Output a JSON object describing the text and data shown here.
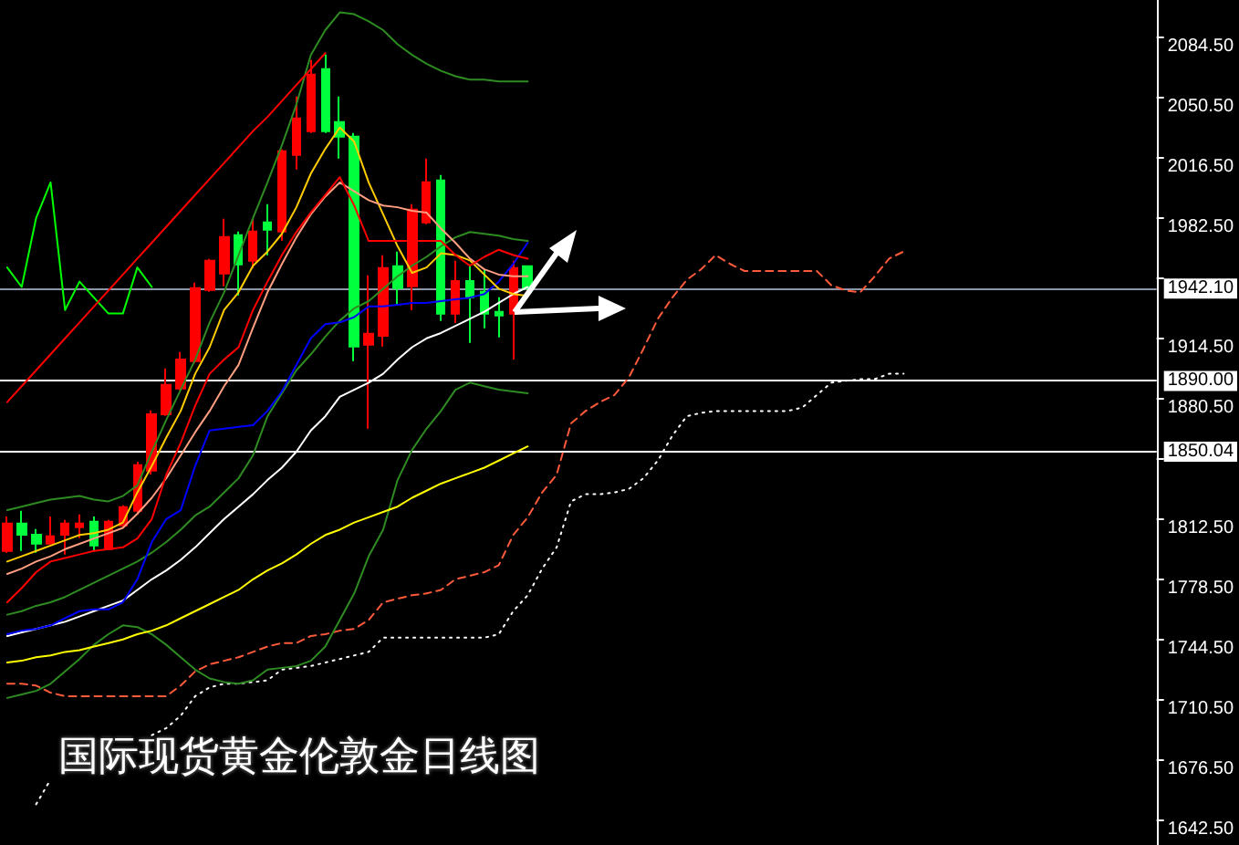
{
  "chart_data": {
    "type": "candlestick",
    "title": "国际现货黄金伦敦金日线图",
    "categories": [
      null,
      null,
      null,
      null,
      null,
      null,
      null,
      null,
      null,
      null,
      null,
      null,
      null,
      null,
      null,
      null,
      null,
      null,
      null,
      null,
      null,
      null,
      null,
      null,
      null,
      null,
      null,
      null,
      null,
      null,
      null,
      null,
      null,
      null,
      null,
      null,
      null,
      null,
      null,
      null,
      null,
      null,
      null,
      null,
      null,
      null,
      null,
      null,
      null,
      null,
      null,
      null,
      null,
      null,
      null,
      null,
      null,
      null,
      null,
      null,
      null,
      null,
      null,
      null,
      null,
      null,
      null,
      null,
      null,
      null,
      null,
      null,
      null,
      null,
      null,
      null,
      null,
      null,
      null,
      null
    ],
    "ohlc": [
      [
        1794,
        1813.5,
        1793,
        1809.4
      ],
      [
        1809.4,
        1816.6,
        1794,
        1803.2
      ],
      [
        1803.2,
        1806.3,
        1793,
        1798.1
      ],
      [
        1798.1,
        1813.5,
        1798.1,
        1802.3
      ],
      [
        1803.2,
        1811.5,
        1791.9,
        1809.4
      ],
      [
        1807.4,
        1814.6,
        1801.3,
        1809.4
      ],
      [
        1810.5,
        1813.5,
        1794,
        1797.1
      ],
      [
        1795,
        1811.5,
        1795,
        1810.5
      ],
      [
        1808.4,
        1819.7,
        1807.4,
        1818.7
      ],
      [
        1816.6,
        1844.4,
        1814.6,
        1842.4
      ],
      [
        1839.3,
        1873.3,
        1837.2,
        1871.2
      ],
      [
        1871.2,
        1897,
        1870.2,
        1887.7
      ],
      [
        1885.7,
        1906.3,
        1884.6,
        1902.1
      ],
      [
        1901.1,
        1945.4,
        1900.1,
        1942.3
      ],
      [
        1941.3,
        1958.8,
        1940.3,
        1957.8
      ],
      [
        1950.6,
        1981.5,
        1943.4,
        1971.2
      ],
      [
        1972.2,
        1974.3,
        1938.2,
        1955.7
      ],
      [
        1957.8,
        1981.5,
        1953.7,
        1974.3
      ],
      [
        1979.4,
        1989.7,
        1960.9,
        1975.3
      ],
      [
        1974.3,
        2020.6,
        1969.1,
        2019.6
      ],
      [
        2017.5,
        2050.5,
        2009.3,
        2038.1
      ],
      [
        2030.9,
        2071.1,
        2029.9,
        2062.9
      ],
      [
        2066,
        2074.2,
        2029.9,
        2030.9
      ],
      [
        2036.1,
        2050.5,
        2015.5,
        2027.8
      ],
      [
        2027.8,
        2029.9,
        1901.1,
        1909.4
      ],
      [
        1910.4,
        1949.5,
        1863,
        1916.6
      ],
      [
        1915.5,
        1960.9,
        1909.4,
        1953.7
      ],
      [
        1954.7,
        1962.9,
        1933.1,
        1942.3
      ],
      [
        1943.4,
        1989.7,
        1930,
        1986.6
      ],
      [
        1979.4,
        2015.5,
        1978.4,
        2002.1
      ],
      [
        2003.1,
        2006.2,
        1923.8,
        1927.9
      ],
      [
        1927.9,
        1957.8,
        1922.7,
        1946.4
      ],
      [
        1946.4,
        1955.7,
        1911.4,
        1937.2
      ],
      [
        1940.3,
        1952.6,
        1919.7,
        1927.9
      ],
      [
        1929,
        1937.2,
        1914.5,
        1926.9
      ],
      [
        1927.9,
        1957.8,
        1902.1,
        1953.7
      ],
      [
        1954.7,
        1954.7,
        1942.1,
        1942.1
      ],
      null,
      null,
      null,
      null,
      null,
      null,
      null,
      null,
      null,
      null,
      null,
      null,
      null,
      null,
      null,
      null,
      null,
      null,
      null,
      null,
      null,
      null,
      null,
      null,
      null,
      null,
      null,
      null,
      null,
      null,
      null,
      null,
      null,
      null,
      null,
      null,
      null,
      null,
      null,
      null,
      null,
      null,
      null
    ],
    "colors": [
      "#ff0000",
      "#00ff3c",
      "#00ff3c",
      "#ff0000",
      "#ff0000",
      "#ff0000",
      "#00ff3c",
      "#ff0000",
      "#ff0000",
      "#ff0000",
      "#ff0000",
      "#ff0000",
      "#ff0000",
      "#ff0000",
      "#ff0000",
      "#ff0000",
      "#00ff3c",
      "#ff0000",
      "#00ff3c",
      "#ff0000",
      "#ff0000",
      "#ff0000",
      "#00ff3c",
      "#00ff3c",
      "#00ff3c",
      "#ff0000",
      "#ff0000",
      "#00ff3c",
      "#ff0000",
      "#ff0000",
      "#00ff3c",
      "#ff0000",
      "#00ff3c",
      "#00ff3c",
      "#00ff3c",
      "#ff0000",
      "#00ff3c",
      null,
      null,
      null,
      null,
      null,
      null,
      null,
      null,
      null,
      null,
      null,
      null,
      null,
      null,
      null,
      null,
      null,
      null,
      null,
      null,
      null,
      null,
      null,
      null,
      null,
      null,
      null,
      null,
      null,
      null,
      null,
      null,
      null,
      null,
      null,
      null,
      null,
      null,
      null,
      null,
      null,
      null,
      null
    ],
    "series": [
      {
        "type": "line",
        "color": "#ff5a3c",
        "line_style": "dashed",
        "values": [
          1719,
          1719,
          1718,
          1714,
          1712,
          1712,
          1712,
          1712,
          1712,
          1712,
          1712,
          1712,
          1718,
          1726,
          1730,
          1732,
          1734,
          1737,
          1740,
          1742,
          1742,
          1746,
          1747,
          1749,
          1750,
          1755,
          1765,
          1767,
          1769,
          1770,
          1772,
          1778,
          1780,
          1782,
          1786,
          1803,
          1813,
          1827,
          1837,
          1866,
          1873,
          1878,
          1882,
          1892,
          1908,
          1925,
          1937,
          1947,
          1953,
          1961,
          1956,
          1952,
          1952,
          1952,
          1952,
          1952,
          1952,
          1944,
          1941,
          1940,
          1949,
          1959,
          1963,
          null,
          null,
          null,
          null,
          null,
          null,
          null,
          null,
          null,
          null,
          null,
          null,
          null,
          null,
          null,
          null,
          null
        ]
      },
      {
        "type": "line",
        "color": "#ffffff",
        "line_style": "dotted",
        "values": [
          null,
          null,
          1651,
          1665,
          null,
          null,
          null,
          null,
          null,
          null,
          1690,
          1694,
          1701,
          1712,
          1717,
          1719,
          1719,
          1720,
          1721,
          1727,
          1728,
          1729,
          1731,
          1733,
          1735,
          1737,
          1745,
          1745,
          1745,
          1745,
          1745,
          1745,
          1745,
          1745,
          1747,
          1760,
          1769,
          1784,
          1796,
          1822,
          1826,
          1826,
          1827,
          1829,
          1835,
          1845,
          1859,
          1870,
          1872,
          1873,
          1873,
          1873,
          1873,
          1873,
          1873,
          1875,
          1882,
          1889,
          1890,
          1891,
          1891,
          1894,
          1894,
          null,
          null,
          null,
          null,
          null,
          null,
          null,
          null,
          null,
          null,
          null,
          null,
          null,
          null,
          null,
          null,
          null
        ]
      },
      {
        "type": "line",
        "color": "#2e8b22",
        "values": [
          1817,
          1819,
          1821,
          1823,
          1824,
          1825,
          1823,
          1822,
          1825,
          1831,
          1850,
          1868,
          1885,
          1902,
          1923,
          1940,
          1961,
          1982,
          2002,
          2023,
          2046,
          2074,
          2088,
          2098,
          2097,
          2093,
          2088,
          2080,
          2074,
          2069,
          2065,
          2062,
          2060,
          2060,
          2059,
          2059,
          2059,
          null,
          null,
          null,
          null,
          null,
          null,
          null,
          null,
          null,
          null,
          null,
          null,
          null,
          null,
          null,
          null,
          null,
          null,
          null,
          null,
          null,
          null,
          null,
          null,
          null,
          null,
          null,
          null,
          null,
          null,
          null,
          null,
          null,
          null,
          null,
          null,
          null,
          null,
          null,
          null,
          null,
          null,
          null
        ]
      },
      {
        "type": "line",
        "color": "#2e8b22",
        "values": [
          1758,
          1760,
          1763,
          1765,
          1768,
          1772,
          1776,
          1780,
          1784,
          1788,
          1793,
          1799,
          1806,
          1814,
          1819,
          1827,
          1835,
          1848,
          1870,
          1883,
          1896,
          1905,
          1915,
          1924,
          1931,
          1935,
          1942,
          1949,
          1955,
          1960,
          1966,
          1971,
          1974,
          1973,
          1972,
          1970,
          1969,
          null,
          null,
          null,
          null,
          null,
          null,
          null,
          null,
          null,
          null,
          null,
          null,
          null,
          null,
          null,
          null,
          null,
          null,
          null,
          null,
          null,
          null,
          null,
          null,
          null,
          null,
          null,
          null,
          null,
          null,
          null,
          null,
          null,
          null,
          null,
          null,
          null,
          null,
          null,
          null,
          null,
          null,
          null
        ]
      },
      {
        "type": "line",
        "color": "#2e8b22",
        "values": [
          1711,
          1713,
          1715,
          1719,
          1726,
          1733,
          1741,
          1747,
          1752,
          1751,
          1747,
          1741,
          1734,
          1727,
          1722,
          1720,
          1719,
          1721,
          1727,
          1728,
          1729,
          1732,
          1740,
          1755,
          1770,
          1791,
          1806,
          1834,
          1851,
          1863,
          1873,
          1885,
          1889,
          1887,
          1885,
          1884,
          1883,
          null,
          null,
          null,
          null,
          null,
          null,
          null,
          null,
          null,
          null,
          null,
          null,
          null,
          null,
          null,
          null,
          null,
          null,
          null,
          null,
          null,
          null,
          null,
          null,
          null,
          null,
          null,
          null,
          null,
          null,
          null,
          null,
          null,
          null,
          null,
          null,
          null,
          null,
          null,
          null,
          null,
          null,
          null
        ]
      },
      {
        "type": "line",
        "color": "#ffff00",
        "values": [
          1731,
          1732,
          1734,
          1735,
          1737,
          1738,
          1740,
          1742,
          1744,
          1747,
          1749,
          1752,
          1756,
          1760,
          1764,
          1768,
          1772,
          1778,
          1783,
          1787,
          1792,
          1798,
          1803,
          1806,
          1810,
          1813,
          1816,
          1819,
          1824,
          1828,
          1832,
          1835,
          1838,
          1841,
          1845,
          1849,
          1853,
          null,
          null,
          null,
          null,
          null,
          null,
          null,
          null,
          null,
          null,
          null,
          null,
          null,
          null,
          null,
          null,
          null,
          null,
          null,
          null,
          null,
          null,
          null,
          null,
          null,
          null,
          null,
          null,
          null,
          null,
          null,
          null,
          null,
          null,
          null,
          null,
          null,
          null,
          null,
          null,
          null,
          null,
          null
        ]
      },
      {
        "type": "line",
        "color": "#ffffff",
        "values": [
          1746,
          1748,
          1750,
          1752,
          1754,
          1757,
          1760,
          1763,
          1766,
          1772,
          1778,
          1783,
          1789,
          1796,
          1804,
          1812,
          1819,
          1826,
          1834,
          1841,
          1850,
          1862,
          1870,
          1881,
          1885,
          1889,
          1894,
          1902,
          1909,
          1914,
          1917,
          1921,
          1925,
          1929,
          1934,
          1939,
          1943,
          null,
          null,
          null,
          null,
          null,
          null,
          null,
          null,
          null,
          null,
          null,
          null,
          null,
          null,
          null,
          null,
          null,
          null,
          null,
          null,
          null,
          null,
          null,
          null,
          null,
          null,
          null,
          null,
          null,
          null,
          null,
          null,
          null,
          null,
          null,
          null,
          null,
          null,
          null,
          null,
          null,
          null,
          null
        ]
      },
      {
        "type": "line",
        "color": "#0000ff",
        "values": [
          1747,
          1749,
          1750,
          1752,
          1756,
          1760,
          1761,
          1761,
          1765,
          1778,
          1799,
          1812,
          1817,
          1842,
          1862,
          1863,
          1864,
          1865,
          1873,
          1884,
          1899,
          1914,
          1922,
          1923,
          1926,
          1932,
          1932,
          1933,
          1934,
          1934,
          1935,
          1936,
          1937,
          1939,
          1946,
          1956,
          1968,
          null,
          null,
          null,
          null,
          null,
          null,
          null,
          null,
          null,
          null,
          null,
          null,
          null,
          null,
          null,
          null,
          null,
          null,
          null,
          null,
          null,
          null,
          null,
          null,
          null,
          null,
          null,
          null,
          null,
          null,
          null,
          null,
          null,
          null,
          null,
          null,
          null,
          null,
          null,
          null,
          null,
          null,
          null
        ]
      },
      {
        "type": "line",
        "color": "#00ff00",
        "values": [
          1954,
          1943,
          1982,
          2002,
          1930,
          1946,
          1937,
          1928,
          1928,
          1954,
          1943,
          null,
          null,
          null,
          null,
          null,
          null,
          null,
          null,
          null,
          null,
          null,
          null,
          null,
          null,
          null,
          null,
          null,
          null,
          null,
          null,
          null,
          null,
          null,
          null,
          null,
          null,
          null,
          null,
          null,
          null,
          null,
          null,
          null,
          null,
          null,
          null,
          null,
          null,
          null,
          null,
          null,
          null,
          null,
          null,
          null,
          null,
          null,
          null,
          null,
          null,
          null,
          null,
          null,
          null,
          null,
          null,
          null,
          null,
          null,
          null,
          null,
          null,
          null,
          null,
          null,
          null,
          null,
          null,
          null
        ]
      },
      {
        "type": "line",
        "color": "#ffcc00",
        "values": [
          1788,
          1791,
          1794,
          1797,
          1800,
          1803,
          1804,
          1806,
          1810,
          1827,
          1842,
          1858,
          1873,
          1894,
          1909,
          1930,
          1940,
          1955,
          1963,
          1973,
          1988,
          2007,
          2021,
          2033,
          2025,
          2002,
          1984,
          1966,
          1951,
          1954,
          1962,
          1961,
          1958,
          1950,
          1942,
          1939,
          1938,
          null,
          null,
          null,
          null,
          null,
          null,
          null,
          null,
          null,
          null,
          null,
          null,
          null,
          null,
          null,
          null,
          null,
          null,
          null,
          null,
          null,
          null,
          null,
          null,
          null,
          null,
          null,
          null,
          null,
          null,
          null,
          null,
          null,
          null,
          null,
          null,
          null,
          null,
          null,
          null,
          null,
          null,
          null
        ]
      },
      {
        "type": "line",
        "color": "#ff9e80",
        "values": [
          1781,
          1784,
          1788,
          1791,
          1795,
          1798,
          1801,
          1804,
          1807,
          1815,
          1824,
          1835,
          1848,
          1861,
          1873,
          1887,
          1899,
          1920,
          1940,
          1956,
          1971,
          1984,
          1994,
          2002,
          1997,
          1992,
          1989,
          1988,
          1986,
          1985,
          1976,
          1968,
          1959,
          1953,
          1950,
          1949,
          1949,
          null,
          null,
          null,
          null,
          null,
          null,
          null,
          null,
          null,
          null,
          null,
          null,
          null,
          null,
          null,
          null,
          null,
          null,
          null,
          null,
          null,
          null,
          null,
          null,
          null,
          null,
          null,
          null,
          null,
          null,
          null,
          null,
          null,
          null,
          null,
          null,
          null,
          null,
          null,
          null,
          null,
          null,
          null
        ]
      },
      {
        "type": "line",
        "color": "#ff0000",
        "values": [
          1765,
          1773,
          1782,
          1788,
          1790,
          1792,
          1794,
          1795,
          1796,
          1801,
          1812,
          1837,
          1855,
          1876,
          1894,
          1902,
          1909,
          1930,
          1946,
          1961,
          1974,
          1985,
          1995,
          2005,
          1989,
          1969,
          1969,
          1969,
          1969,
          1969,
          1969,
          1961,
          1955,
          1960,
          1964,
          1961,
          1959,
          null,
          null,
          null,
          null,
          null,
          null,
          null,
          null,
          null,
          null,
          null,
          null,
          null,
          null,
          null,
          null,
          null,
          null,
          null,
          null,
          null,
          null,
          null,
          null,
          null,
          null,
          null,
          null,
          null,
          null,
          null,
          null,
          null,
          null,
          null,
          null,
          null,
          null,
          null,
          null,
          null,
          null,
          null
        ]
      },
      {
        "type": "line",
        "color": "#ff0000",
        "values": [
          1878,
          1887,
          1896,
          1905,
          1914,
          1923,
          1932,
          1941,
          1950,
          1959,
          1968,
          1977,
          1986,
          1995,
          2004,
          2013,
          2022,
          2031,
          2039,
          2048,
          2057,
          2066,
          2075,
          null,
          null,
          null,
          null,
          null,
          null,
          null,
          null,
          null,
          null,
          null,
          null,
          null,
          null,
          null,
          null,
          null,
          null,
          null,
          null,
          null,
          null,
          null,
          null,
          null,
          null,
          null,
          null,
          null,
          null,
          null,
          null,
          null,
          null,
          null,
          null,
          null,
          null,
          null,
          null,
          null,
          null,
          null,
          null,
          null,
          null,
          null,
          null,
          null,
          null,
          null,
          null,
          null,
          null,
          null,
          null,
          null
        ]
      }
    ],
    "ylim": [
      1628,
      2105
    ],
    "yticks": [
      {
        "value": 1642.5,
        "label": "1642.50"
      },
      {
        "value": 1676.5,
        "label": "1676.50"
      },
      {
        "value": 1710.5,
        "label": "1710.50"
      },
      {
        "value": 1744.5,
        "label": "1744.50"
      },
      {
        "value": 1778.5,
        "label": "1778.50"
      },
      {
        "value": 1812.5,
        "label": "1812.50"
      },
      {
        "value": 1846.5,
        "label": null
      },
      {
        "value": 1880.5,
        "label": "1880.50"
      },
      {
        "value": 1914.5,
        "label": "1914.50"
      },
      {
        "value": 1948.5,
        "label": null
      },
      {
        "value": 1982.5,
        "label": "1982.50"
      },
      {
        "value": 2016.5,
        "label": "2016.50"
      },
      {
        "value": 2050.5,
        "label": "2050.50"
      },
      {
        "value": 2084.5,
        "label": "2084.50"
      }
    ],
    "ref_lines": [
      {
        "axis": "y",
        "value": 1942.1,
        "label": "1942.10",
        "color": "#8c96a6"
      },
      {
        "axis": "y",
        "value": 1890,
        "label": "1890.00",
        "color": "#ffffff"
      },
      {
        "axis": "y",
        "value": 1850.04,
        "label": "1850.04",
        "color": "#ffffff"
      }
    ]
  }
}
